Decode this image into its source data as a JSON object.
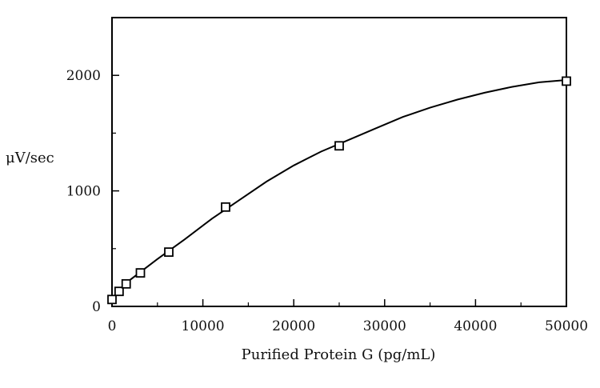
{
  "chart_data": {
    "type": "line",
    "title": "",
    "xlabel": "Purified Protein G (pg/mL)",
    "ylabel": "μV/sec",
    "xlim": [
      0,
      50000
    ],
    "ylim": [
      0,
      2500
    ],
    "x_ticks": [
      0,
      10000,
      20000,
      30000,
      40000,
      50000
    ],
    "y_ticks": [
      0,
      1000,
      2000
    ],
    "x_tick_labels": [
      "0",
      "10000",
      "20000",
      "30000",
      "40000",
      "50000"
    ],
    "y_tick_labels": [
      "0",
      "1000",
      "2000"
    ],
    "grid": false,
    "legend": "none",
    "series": [
      {
        "marker": "open-square",
        "x": [
          0,
          780,
          1560,
          3125,
          6250,
          12500,
          25000,
          50000
        ],
        "y": [
          60,
          130,
          195,
          290,
          470,
          860,
          1390,
          1950
        ]
      }
    ],
    "fit_curve": {
      "x": [
        0,
        2000,
        5000,
        8000,
        11000,
        14000,
        17000,
        20000,
        23000,
        26000,
        29000,
        32000,
        35000,
        38000,
        41000,
        44000,
        47000,
        50000
      ],
      "y": [
        60,
        230,
        410,
        580,
        760,
        920,
        1080,
        1220,
        1340,
        1440,
        1540,
        1640,
        1720,
        1790,
        1850,
        1900,
        1940,
        1960
      ]
    },
    "colors": {
      "line": "#000000",
      "marker": "#000000",
      "axis": "#000000"
    }
  }
}
